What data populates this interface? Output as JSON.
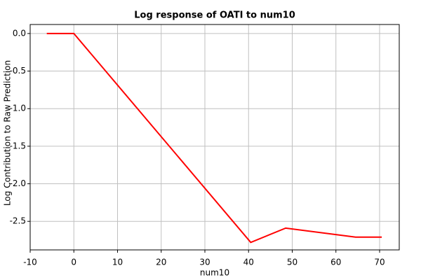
{
  "chart_data": {
    "type": "line",
    "title": "Log response of OATI to num10",
    "x_label": "num10",
    "y_label": "Log Contribution to Raw Prediction",
    "grid": true,
    "series": [
      {
        "name": "response",
        "color": "#ff0000",
        "x": [
          -6.2,
          0,
          40.5,
          48.5,
          64.5,
          70.5
        ],
        "values": [
          0,
          0,
          -2.78,
          -2.59,
          -2.71,
          -2.71
        ]
      }
    ],
    "xlim": [
      -10,
      74.5
    ],
    "xticks": [
      -10,
      0,
      10,
      20,
      30,
      40,
      50,
      60,
      70
    ],
    "ylim": [
      -2.88,
      0.12
    ],
    "yticks": [
      {
        "value": 0,
        "label": "0.0"
      },
      {
        "value": -0.5,
        "label": "-0.5"
      },
      {
        "value": -1,
        "label": "-1.0"
      },
      {
        "value": -1.5,
        "label": "-1.5"
      },
      {
        "value": -2,
        "label": "-2.0"
      },
      {
        "value": -2.5,
        "label": "-2.5"
      }
    ]
  }
}
